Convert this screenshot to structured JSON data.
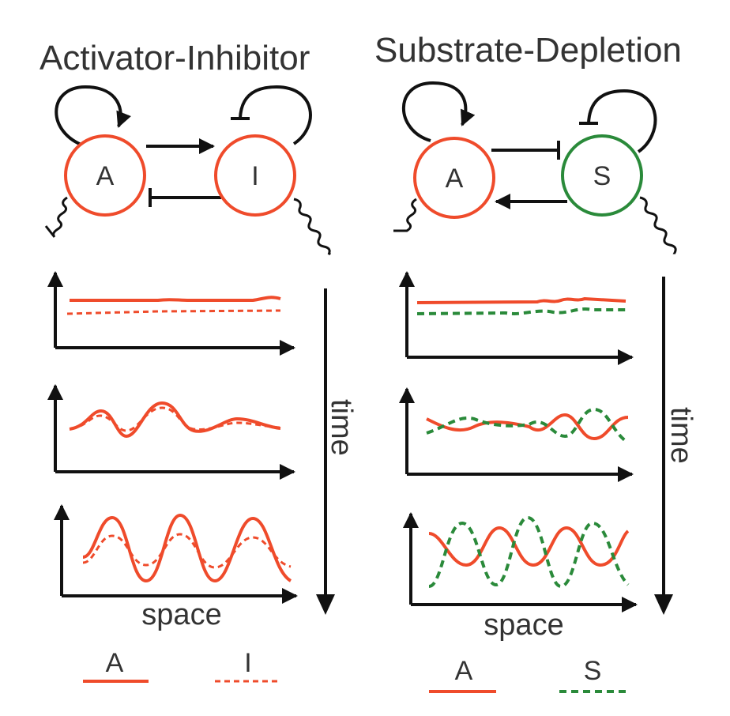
{
  "colors": {
    "activator": "#ef4b2b",
    "inhibitor": "#ef4b2b",
    "substrate": "#2a8a3a",
    "arrow": "#111111",
    "text": "#333333"
  },
  "left": {
    "title": "Activator-Inhibitor",
    "node_a": "A",
    "node_b": "I",
    "xlabel": "space",
    "timelabel": "time",
    "legend": [
      {
        "label": "A",
        "style": "solid",
        "color": "#ef4b2b"
      },
      {
        "label": "I",
        "style": "dashed",
        "color": "#ef4b2b"
      }
    ]
  },
  "right": {
    "title": "Substrate-Depletion",
    "node_a": "A",
    "node_b": "S",
    "xlabel": "space",
    "timelabel": "time",
    "legend": [
      {
        "label": "A",
        "style": "solid",
        "color": "#ef4b2b"
      },
      {
        "label": "S",
        "style": "dashed",
        "color": "#2a8a3a"
      }
    ]
  }
}
